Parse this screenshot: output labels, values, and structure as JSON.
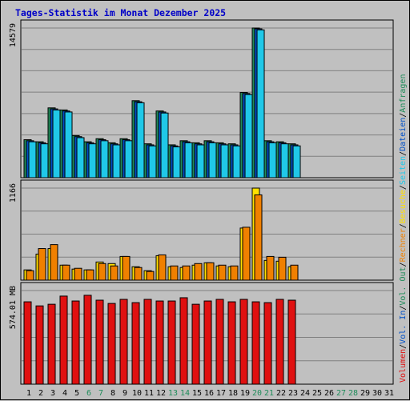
{
  "chart_data": {
    "type": "bar",
    "title": "Tages-Statistik im Monat Dezember 2025",
    "categories": [
      "1",
      "2",
      "3",
      "4",
      "5",
      "6",
      "7",
      "8",
      "9",
      "10",
      "11",
      "12",
      "13",
      "14",
      "15",
      "16",
      "17",
      "18",
      "19",
      "20",
      "21",
      "22",
      "23",
      "24",
      "25",
      "26",
      "27",
      "28",
      "29",
      "30",
      "31"
    ],
    "weekend_days": [
      "6",
      "7",
      "13",
      "14",
      "20",
      "21",
      "27",
      "28"
    ],
    "panels": [
      {
        "axis_label": "14579",
        "ylim": [
          0,
          14579
        ],
        "series": [
          {
            "name": "Anfragen",
            "color": "#1f8c5a",
            "values": [
              3700,
              3500,
              6800,
              6600,
              4100,
              3500,
              3800,
              3400,
              3800,
              7500,
              3300,
              6500,
              3200,
              3600,
              3400,
              3600,
              3400,
              3300,
              8300,
              14579,
              3600,
              3500,
              3300,
              0,
              0,
              0,
              0,
              0,
              0,
              0,
              0
            ]
          },
          {
            "name": "Dateien",
            "color": "#0050c8",
            "values": [
              3600,
              3400,
              6700,
              6500,
              4000,
              3400,
              3700,
              3300,
              3700,
              7400,
              3200,
              6400,
              3100,
              3500,
              3300,
              3500,
              3300,
              3200,
              8200,
              14500,
              3500,
              3400,
              3200,
              0,
              0,
              0,
              0,
              0,
              0,
              0,
              0
            ]
          },
          {
            "name": "Seiten",
            "color": "#20c8e8",
            "values": [
              3500,
              3300,
              6600,
              6400,
              3900,
              3300,
              3600,
              3200,
              3600,
              7300,
              3100,
              6300,
              3000,
              3400,
              3200,
              3400,
              3200,
              3100,
              8100,
              14400,
              3400,
              3300,
              3100,
              0,
              0,
              0,
              0,
              0,
              0,
              0,
              0
            ]
          }
        ]
      },
      {
        "axis_label": "1166",
        "ylim": [
          0,
          1166
        ],
        "series": [
          {
            "name": "Besuche",
            "color": "#ffe000",
            "values": [
              130,
              330,
              400,
              190,
              140,
              130,
              230,
              210,
              300,
              170,
              120,
              310,
              170,
              160,
              190,
              220,
              180,
              170,
              660,
              1166,
              250,
              240,
              170,
              0,
              0,
              0,
              0,
              0,
              0,
              0,
              0
            ]
          },
          {
            "name": "Rechner",
            "color": "#f08000",
            "values": [
              120,
              400,
              450,
              190,
              150,
              130,
              210,
              180,
              300,
              160,
              110,
              320,
              180,
              180,
              210,
              220,
              190,
              180,
              670,
              1080,
              300,
              290,
              190,
              0,
              0,
              0,
              0,
              0,
              0,
              0,
              0
            ]
          }
        ]
      },
      {
        "axis_label": "574.01 MB",
        "ylim": [
          0,
          574.01
        ],
        "series": [
          {
            "name": "Volumen",
            "color": "#e01010",
            "values": [
              505,
              480,
              490,
              540,
              510,
              545,
              515,
              495,
              520,
              500,
              520,
              510,
              510,
              530,
              490,
              510,
              520,
              505,
              520,
              505,
              500,
              520,
              515,
              0,
              0,
              0,
              0,
              0,
              0,
              0,
              0
            ]
          }
        ]
      }
    ],
    "right_legend": [
      {
        "text": "Volumen",
        "color": "#e01010"
      },
      {
        "text": "Vol. In",
        "color": "#0050c8"
      },
      {
        "text": "Vol. Out",
        "color": "#1f8c5a"
      },
      {
        "text": "Rechner",
        "color": "#f08000"
      },
      {
        "text": "Besuche",
        "color": "#ffe000"
      },
      {
        "text": "Seiten",
        "color": "#20c8e8"
      },
      {
        "text": "Dateien",
        "color": "#0050c8"
      },
      {
        "text": "Anfragen",
        "color": "#1f8c5a"
      }
    ],
    "legend_separator": "/",
    "grid": true
  }
}
